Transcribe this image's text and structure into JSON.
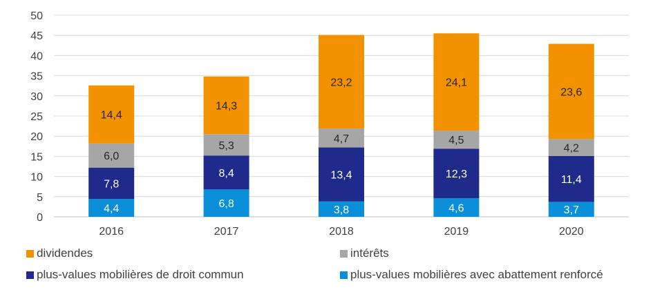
{
  "chart_data": {
    "type": "bar",
    "stacked": true,
    "categories": [
      "2016",
      "2017",
      "2018",
      "2019",
      "2020"
    ],
    "ylim": [
      0,
      50
    ],
    "yticks": [
      "0",
      "5",
      "10",
      "15",
      "20",
      "25",
      "30",
      "35",
      "40",
      "45",
      "50"
    ],
    "grid": true,
    "legend_position": "bottom",
    "series": [
      {
        "name": "plus-values mobilières avec abattement renforcé",
        "color": "#0B8FD9",
        "label_color": "#ffffff",
        "values": [
          4.4,
          6.8,
          3.8,
          4.6,
          3.7
        ],
        "labels": [
          "4,4",
          "6,8",
          "3,8",
          "4,6",
          "3,7"
        ]
      },
      {
        "name": "plus-values mobilières de droit commun",
        "color": "#1F2B8A",
        "label_color": "#ffffff",
        "values": [
          7.8,
          8.4,
          13.4,
          12.3,
          11.4
        ],
        "labels": [
          "7,8",
          "8,4",
          "13,4",
          "12,3",
          "11,4"
        ]
      },
      {
        "name": "intérêts",
        "color": "#A6A6A6",
        "label_color": "#262626",
        "values": [
          6.0,
          5.3,
          4.7,
          4.5,
          4.2
        ],
        "labels": [
          "6,0",
          "5,3",
          "4,7",
          "4,5",
          "4,2"
        ]
      },
      {
        "name": "dividendes",
        "color": "#F39200",
        "label_color": "#262626",
        "values": [
          14.4,
          14.3,
          23.2,
          24.1,
          23.6
        ],
        "labels": [
          "14,4",
          "14,3",
          "23,2",
          "24,1",
          "23,6"
        ]
      }
    ]
  },
  "legend": {
    "items": [
      {
        "label": "dividendes",
        "color": "#F39200"
      },
      {
        "label": "intérêts",
        "color": "#A6A6A6"
      },
      {
        "label": "plus-values mobilières de droit commun",
        "color": "#1F2B8A"
      },
      {
        "label": "plus-values mobilières avec abattement renforcé",
        "color": "#0B8FD9"
      }
    ]
  }
}
